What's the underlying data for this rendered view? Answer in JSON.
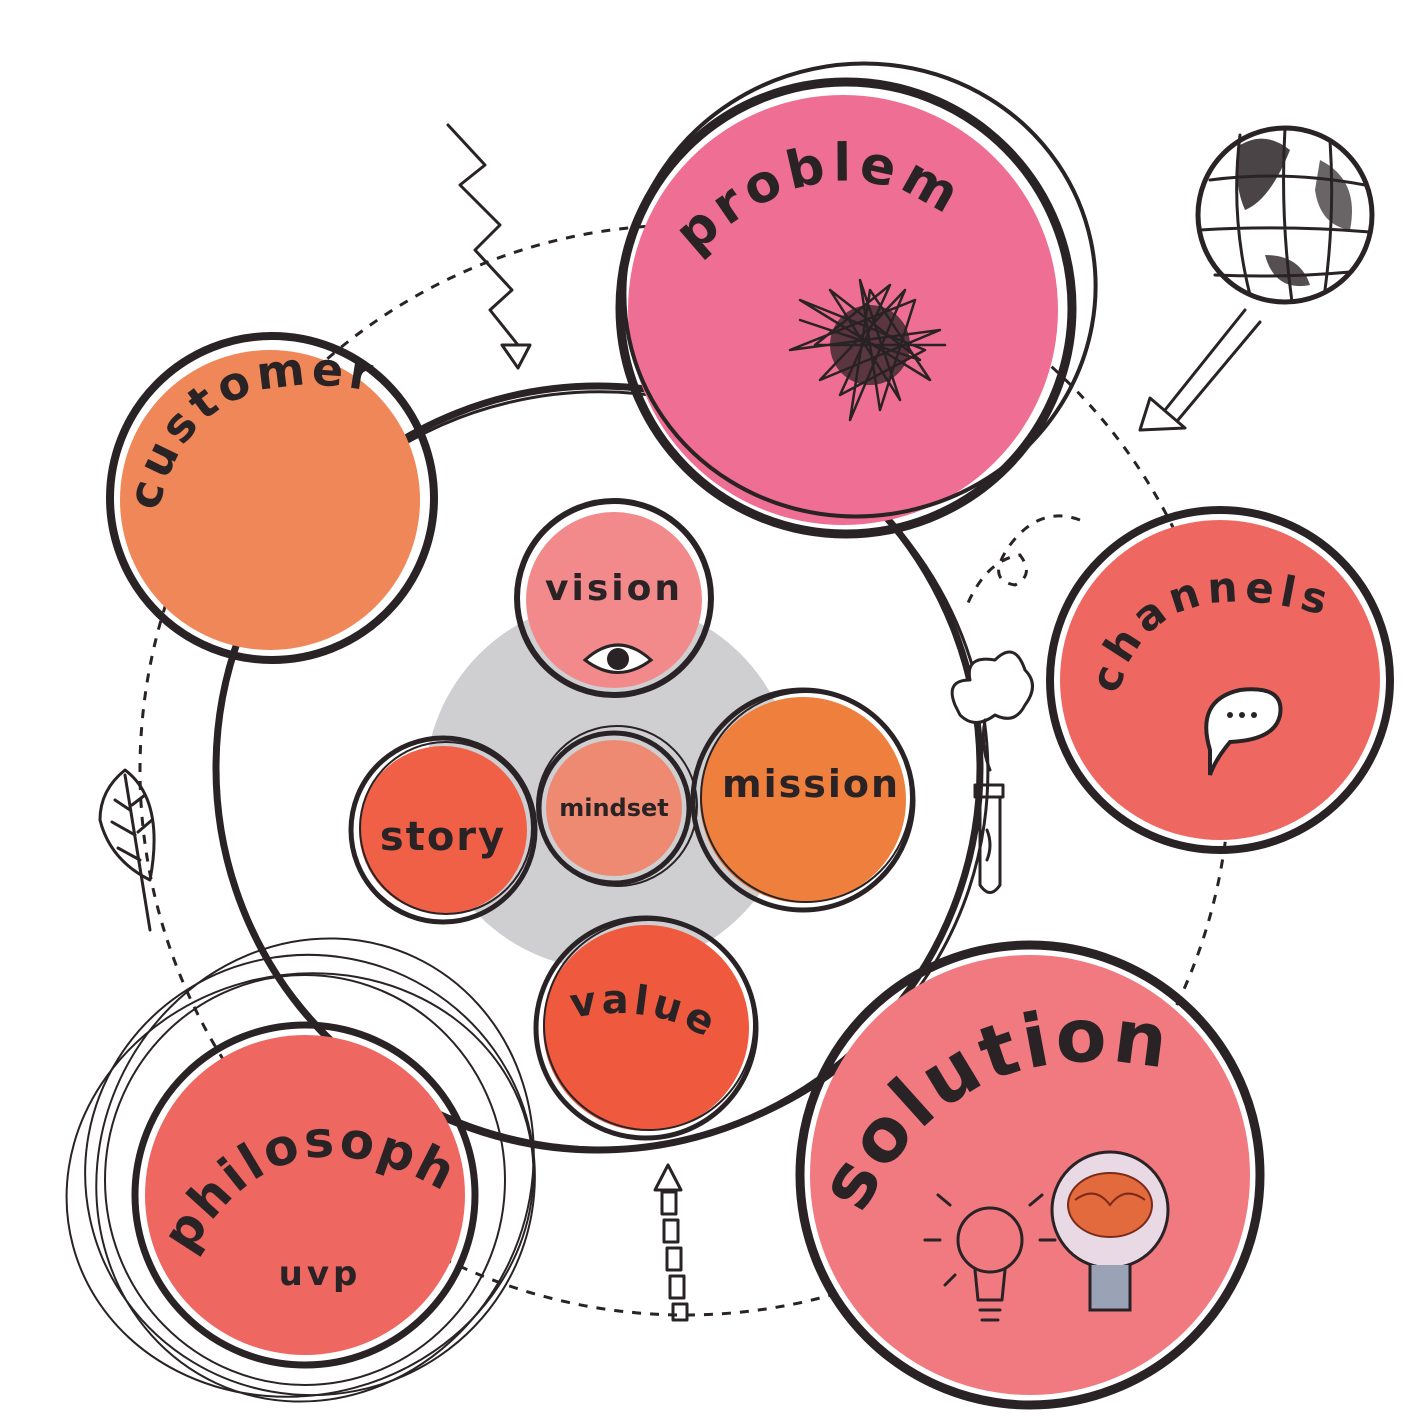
{
  "colors": {
    "ink": "#2a2326",
    "pink": "#ee6f93",
    "salmon": "#f07a66",
    "orange": "#ef8759",
    "coral": "#ef6047",
    "light_pink": "#f28a8c",
    "grey": "#cfcfd2"
  },
  "outer": {
    "problem": "problem",
    "customer": "customer",
    "channels": "channels",
    "solution": "solution",
    "philosophy": "philosophy",
    "uvp": "uvp"
  },
  "inner": {
    "vision": "vision",
    "mindset": "mindset",
    "story": "story",
    "mission": "mission",
    "values": "values"
  },
  "icons": [
    "scribble-icon",
    "globe-icon",
    "arrow-icon",
    "speech-bubble-icon",
    "test-tube-icon",
    "leaf-icon",
    "lightbulb-icon",
    "brain-bulb-icon",
    "eye-icon",
    "zigzag-arrow-icon"
  ]
}
